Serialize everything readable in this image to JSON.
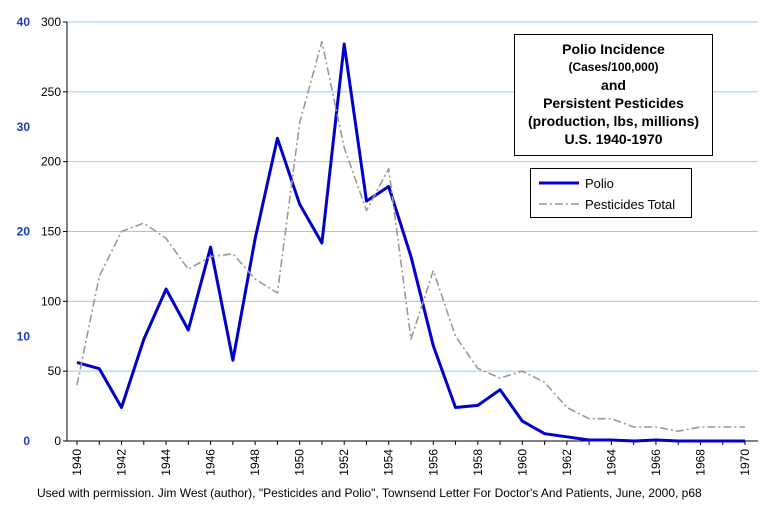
{
  "chart_data": {
    "type": "line",
    "title": {
      "line1": "Polio Incidence",
      "line2": "(Cases/100,000)",
      "line3": "and",
      "line4": "Persistent Pesticides",
      "line5": "(production, lbs, millions)",
      "line6": "U.S.  1940-1970"
    },
    "ylim_left": [
      0,
      300
    ],
    "ylim_right": [
      0,
      40
    ],
    "xlim": [
      1940,
      1970
    ],
    "yticks_left": [
      "0",
      "50",
      "100",
      "150",
      "200",
      "250",
      "300"
    ],
    "yticks_right": [
      "0",
      "10",
      "20",
      "30",
      "40"
    ],
    "xticks": [
      "1940",
      "1942",
      "1944",
      "1946",
      "1948",
      "1950",
      "1952",
      "1954",
      "1956",
      "1958",
      "1960",
      "1962",
      "1964",
      "1966",
      "1968",
      "1970"
    ],
    "grid": "horizontal",
    "legend_position": "right",
    "series": [
      {
        "name": "Polio",
        "axis": "right",
        "color": "#0000cc",
        "style": "solid",
        "x": [
          1940,
          1941,
          1942,
          1943,
          1944,
          1945,
          1946,
          1947,
          1948,
          1949,
          1950,
          1951,
          1952,
          1953,
          1954,
          1955,
          1956,
          1957,
          1958,
          1959,
          1960,
          1961,
          1962,
          1963,
          1964,
          1965,
          1966,
          1967,
          1968,
          1969,
          1970
        ],
        "values": [
          7.5,
          6.9,
          3.2,
          9.7,
          14.5,
          10.6,
          18.5,
          7.7,
          19.3,
          28.9,
          22.6,
          18.9,
          37.9,
          22.9,
          24.3,
          17.6,
          9.1,
          3.2,
          3.4,
          4.9,
          1.9,
          0.7,
          0.4,
          0.1,
          0.1,
          0.0,
          0.1,
          0.0,
          0.0,
          0.0,
          0.0
        ]
      },
      {
        "name": "Pesticides Total",
        "axis": "left",
        "color": "#999999",
        "style": "dash-dot",
        "x": [
          1940,
          1941,
          1942,
          1943,
          1944,
          1945,
          1946,
          1947,
          1948,
          1949,
          1950,
          1951,
          1952,
          1953,
          1954,
          1955,
          1956,
          1957,
          1958,
          1959,
          1960,
          1961,
          1962,
          1963,
          1964,
          1965,
          1966,
          1967,
          1968,
          1969,
          1970
        ],
        "values": [
          40,
          118,
          150,
          156,
          145,
          123,
          132,
          134,
          116,
          106,
          228,
          286,
          210,
          165,
          195,
          73,
          122,
          75,
          52,
          45,
          50,
          42,
          24,
          16,
          16,
          10,
          10,
          7,
          10,
          10,
          10
        ]
      }
    ]
  },
  "legend": {
    "item1": "Polio",
    "item2": "Pesticides Total"
  },
  "credit": "Used with permission.  Jim West (author), \"Pesticides and Polio\", Townsend Letter For Doctor's And Patients, June, 2000, p68"
}
